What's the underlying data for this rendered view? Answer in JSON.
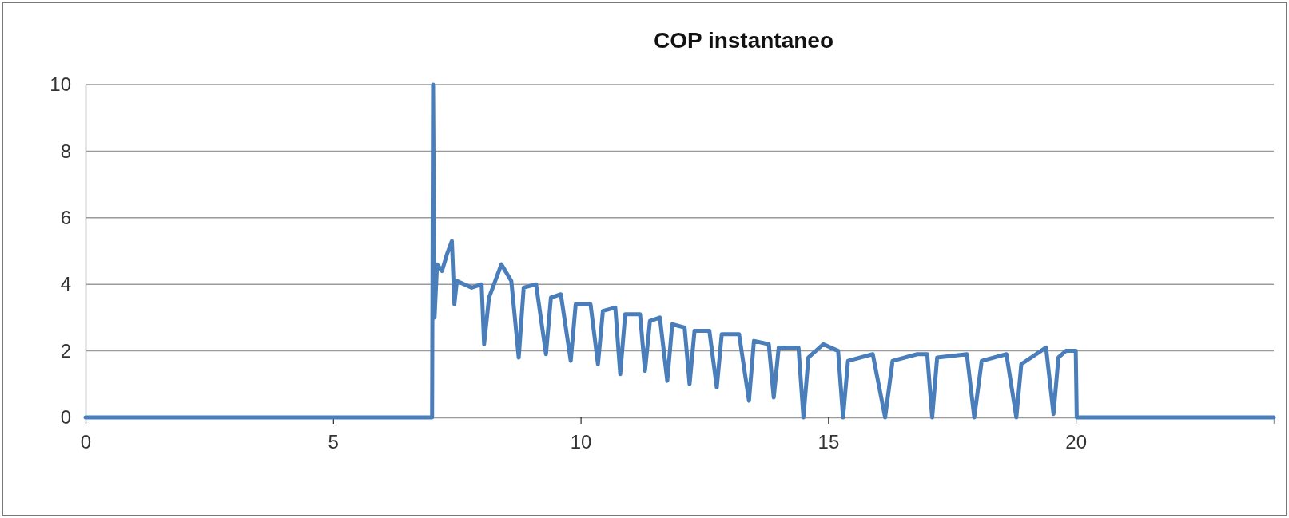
{
  "chart_data": {
    "type": "line",
    "title": "COP instantaneo",
    "x": [
      0,
      7,
      7.02,
      7.05,
      7.1,
      7.2,
      7.3,
      7.4,
      7.45,
      7.5,
      7.8,
      8.0,
      8.05,
      8.15,
      8.4,
      8.6,
      8.75,
      8.85,
      9.1,
      9.3,
      9.4,
      9.6,
      9.8,
      9.9,
      10.2,
      10.35,
      10.45,
      10.7,
      10.8,
      10.9,
      11.2,
      11.3,
      11.4,
      11.6,
      11.75,
      11.85,
      12.1,
      12.2,
      12.3,
      12.6,
      12.75,
      12.85,
      13.2,
      13.4,
      13.5,
      13.8,
      13.9,
      14.0,
      14.4,
      14.5,
      14.6,
      14.9,
      15.2,
      15.3,
      15.4,
      15.9,
      16.15,
      16.3,
      16.8,
      17.0,
      17.1,
      17.2,
      17.8,
      17.95,
      18.1,
      18.6,
      18.8,
      18.9,
      19.4,
      19.55,
      19.65,
      19.8,
      20.0,
      20.02,
      24
    ],
    "series": [
      {
        "color": "#4a7ebb",
        "values": [
          0,
          0,
          10,
          3,
          4.6,
          4.4,
          4.9,
          5.3,
          3.4,
          4.1,
          3.9,
          4.0,
          2.2,
          3.6,
          4.6,
          4.1,
          1.8,
          3.9,
          4.0,
          1.9,
          3.6,
          3.7,
          1.7,
          3.4,
          3.4,
          1.6,
          3.2,
          3.3,
          1.3,
          3.1,
          3.1,
          1.4,
          2.9,
          3.0,
          1.1,
          2.8,
          2.7,
          1.0,
          2.6,
          2.6,
          0.9,
          2.5,
          2.5,
          0.5,
          2.3,
          2.2,
          0.6,
          2.1,
          2.1,
          0,
          1.8,
          2.2,
          2.0,
          0,
          1.7,
          1.9,
          0,
          1.7,
          1.9,
          1.9,
          0,
          1.8,
          1.9,
          0,
          1.7,
          1.9,
          0,
          1.6,
          2.1,
          0.1,
          1.8,
          2.0,
          2.0,
          0,
          0
        ]
      }
    ],
    "xlim": [
      0,
      24
    ],
    "xticks": [
      0,
      5,
      10,
      15,
      20
    ],
    "ylim": [
      0,
      10
    ],
    "yticks": [
      0,
      2,
      4,
      6,
      8,
      10
    ],
    "grid": "y",
    "marker": "none",
    "line_style": "solid"
  }
}
